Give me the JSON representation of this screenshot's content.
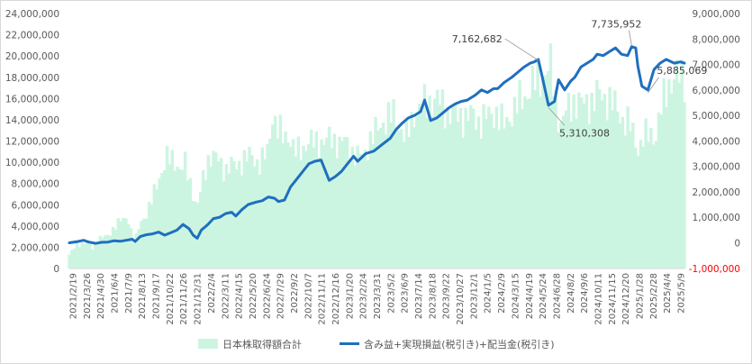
{
  "chart_data": {
    "type": "bar+line",
    "title": "",
    "series": [
      {
        "name": "日本株取得額合計",
        "kind": "bar",
        "axis": "left",
        "color": "#ccf5e1",
        "points": [
          [
            0,
            1300000
          ],
          [
            0.18,
            2200000
          ],
          [
            0.32,
            2400000
          ],
          [
            0.45,
            2500000
          ],
          [
            0.55,
            1800000
          ],
          [
            0.75,
            2900000
          ],
          [
            0.95,
            3000000
          ],
          [
            1.15,
            4200000
          ],
          [
            1.3,
            4500000
          ],
          [
            1.45,
            4800000
          ],
          [
            1.6,
            2300000
          ],
          [
            1.75,
            4300000
          ],
          [
            1.9,
            5200000
          ],
          [
            2.05,
            6500000
          ],
          [
            2.2,
            8500000
          ],
          [
            2.4,
            10300000
          ],
          [
            2.6,
            10200000
          ],
          [
            2.75,
            9200000
          ],
          [
            2.85,
            9800000
          ],
          [
            3.0,
            7800000
          ],
          [
            3.15,
            5600000
          ],
          [
            3.3,
            8500000
          ],
          [
            3.45,
            10700000
          ],
          [
            3.65,
            10300000
          ],
          [
            3.85,
            9300000
          ],
          [
            4.0,
            9700000
          ],
          [
            4.15,
            9800000
          ],
          [
            4.3,
            10200000
          ],
          [
            4.5,
            10700000
          ],
          [
            4.7,
            9700000
          ],
          [
            4.9,
            11200000
          ],
          [
            5.0,
            14800000
          ],
          [
            5.12,
            13000000
          ],
          [
            5.25,
            12500000
          ],
          [
            5.4,
            12700000
          ],
          [
            5.55,
            10800000
          ],
          [
            5.7,
            11300000
          ],
          [
            5.85,
            11700000
          ],
          [
            6.0,
            11900000
          ],
          [
            6.15,
            12000000
          ],
          [
            6.3,
            11800000
          ],
          [
            6.45,
            12400000
          ],
          [
            6.65,
            11700000
          ],
          [
            6.8,
            12000000
          ],
          [
            6.95,
            11100000
          ],
          [
            7.1,
            10500000
          ],
          [
            7.25,
            10700000
          ],
          [
            7.4,
            12000000
          ],
          [
            7.55,
            12800000
          ],
          [
            7.7,
            13800000
          ],
          [
            7.85,
            14100000
          ],
          [
            8.0,
            14500000
          ],
          [
            8.15,
            13300000
          ],
          [
            8.3,
            12200000
          ],
          [
            8.5,
            14700000
          ],
          [
            8.7,
            15200000
          ],
          [
            8.85,
            15700000
          ],
          [
            9.0,
            15900000
          ],
          [
            9.15,
            15600000
          ],
          [
            9.35,
            14600000
          ],
          [
            9.55,
            14400000
          ],
          [
            9.75,
            14300000
          ],
          [
            9.95,
            14400000
          ],
          [
            10.1,
            13800000
          ],
          [
            10.3,
            14300000
          ],
          [
            10.5,
            14800000
          ],
          [
            10.7,
            13400000
          ],
          [
            10.9,
            14700000
          ],
          [
            11.1,
            15700000
          ],
          [
            11.3,
            16700000
          ],
          [
            11.5,
            17600000
          ],
          [
            11.7,
            18400000
          ],
          [
            11.85,
            19000000
          ],
          [
            11.95,
            16500000
          ],
          [
            12.1,
            13500000
          ],
          [
            12.25,
            14800000
          ],
          [
            12.45,
            15900000
          ],
          [
            12.65,
            15400000
          ],
          [
            12.85,
            15700000
          ],
          [
            13.05,
            16400000
          ],
          [
            13.25,
            16000000
          ],
          [
            13.45,
            15200000
          ],
          [
            13.65,
            14000000
          ],
          [
            13.85,
            13200000
          ],
          [
            14.0,
            11300000
          ],
          [
            14.15,
            12200000
          ],
          [
            14.3,
            12800000
          ],
          [
            14.45,
            12500000
          ],
          [
            14.6,
            15300000
          ],
          [
            14.75,
            17500000
          ],
          [
            14.9,
            17800000
          ],
          [
            15.05,
            18200000
          ],
          [
            15.15,
            18000000
          ]
        ]
      },
      {
        "name": "含み益+実現損益(税引き)+配当金(税引き)",
        "kind": "line",
        "axis": "right",
        "color": "#1f6fbf",
        "points": [
          [
            0,
            0
          ],
          [
            0.2,
            50000
          ],
          [
            0.35,
            100000
          ],
          [
            0.5,
            20000
          ],
          [
            0.65,
            -20000
          ],
          [
            0.8,
            20000
          ],
          [
            0.95,
            30000
          ],
          [
            1.1,
            80000
          ],
          [
            1.25,
            60000
          ],
          [
            1.4,
            100000
          ],
          [
            1.55,
            140000
          ],
          [
            1.62,
            50000
          ],
          [
            1.75,
            250000
          ],
          [
            1.9,
            320000
          ],
          [
            2.05,
            350000
          ],
          [
            2.2,
            420000
          ],
          [
            2.35,
            300000
          ],
          [
            2.5,
            400000
          ],
          [
            2.65,
            500000
          ],
          [
            2.8,
            720000
          ],
          [
            2.95,
            550000
          ],
          [
            3.05,
            300000
          ],
          [
            3.15,
            180000
          ],
          [
            3.25,
            500000
          ],
          [
            3.4,
            700000
          ],
          [
            3.55,
            950000
          ],
          [
            3.7,
            1000000
          ],
          [
            3.85,
            1150000
          ],
          [
            4.0,
            1200000
          ],
          [
            4.1,
            1050000
          ],
          [
            4.25,
            1300000
          ],
          [
            4.4,
            1500000
          ],
          [
            4.6,
            1600000
          ],
          [
            4.75,
            1650000
          ],
          [
            4.9,
            1800000
          ],
          [
            5.05,
            1750000
          ],
          [
            5.15,
            1620000
          ],
          [
            5.3,
            1680000
          ],
          [
            5.45,
            2200000
          ],
          [
            5.6,
            2500000
          ],
          [
            5.75,
            2800000
          ],
          [
            5.9,
            3100000
          ],
          [
            6.05,
            3200000
          ],
          [
            6.2,
            3250000
          ],
          [
            6.4,
            2450000
          ],
          [
            6.55,
            2600000
          ],
          [
            6.7,
            2800000
          ],
          [
            6.85,
            3100000
          ],
          [
            7.0,
            3400000
          ],
          [
            7.1,
            3200000
          ],
          [
            7.3,
            3500000
          ],
          [
            7.5,
            3600000
          ],
          [
            7.7,
            3850000
          ],
          [
            7.9,
            4100000
          ],
          [
            8.05,
            4450000
          ],
          [
            8.2,
            4700000
          ],
          [
            8.35,
            4900000
          ],
          [
            8.5,
            5000000
          ],
          [
            8.65,
            5150000
          ],
          [
            8.75,
            5600000
          ],
          [
            8.9,
            4800000
          ],
          [
            9.05,
            4900000
          ],
          [
            9.2,
            5100000
          ],
          [
            9.35,
            5300000
          ],
          [
            9.5,
            5450000
          ],
          [
            9.65,
            5550000
          ],
          [
            9.8,
            5600000
          ],
          [
            10.0,
            5800000
          ],
          [
            10.15,
            6000000
          ],
          [
            10.3,
            5900000
          ],
          [
            10.45,
            6050000
          ],
          [
            10.55,
            6050000
          ],
          [
            10.7,
            6280000
          ],
          [
            10.9,
            6500000
          ],
          [
            11.05,
            6700000
          ],
          [
            11.2,
            6900000
          ],
          [
            11.35,
            7050000
          ],
          [
            11.45,
            7100000
          ],
          [
            11.55,
            7200000
          ],
          [
            11.65,
            6500000
          ],
          [
            11.8,
            5400000
          ],
          [
            11.95,
            5550000
          ],
          [
            12.05,
            6400000
          ],
          [
            12.2,
            6000000
          ],
          [
            12.35,
            6350000
          ],
          [
            12.45,
            6500000
          ],
          [
            12.6,
            6900000
          ],
          [
            12.75,
            7050000
          ],
          [
            12.9,
            7200000
          ],
          [
            13.0,
            7400000
          ],
          [
            13.15,
            7350000
          ],
          [
            13.3,
            7500000
          ],
          [
            13.45,
            7650000
          ],
          [
            13.6,
            7400000
          ],
          [
            13.75,
            7350000
          ],
          [
            13.85,
            7700000
          ],
          [
            13.95,
            7650000
          ],
          [
            14.0,
            6950000
          ],
          [
            14.1,
            6150000
          ],
          [
            14.25,
            6000000
          ],
          [
            14.4,
            6800000
          ],
          [
            14.55,
            7050000
          ],
          [
            14.7,
            7200000
          ],
          [
            14.9,
            7050000
          ],
          [
            15.05,
            7100000
          ],
          [
            15.15,
            7050000
          ]
        ]
      }
    ],
    "x_tick_labels": [
      "2021/2/19",
      "2021/3/26",
      "2021/4/30",
      "2021/6/4",
      "2021/7/9",
      "2021/8/13",
      "2021/9/17",
      "2021/10/22",
      "2021/11/26",
      "2021/12/31",
      "2022/2/4",
      "2022/3/11",
      "2022/4/15",
      "2022/5/20",
      "2022/6/24",
      "2022/7/29",
      "2022/9/2",
      "2022/10/7",
      "2022/11/11",
      "2022/12/16",
      "2023/1/20",
      "2023/2/24",
      "2023/3/31",
      "2023/5/2",
      "2023/6/9",
      "2023/7/14",
      "2023/8/18",
      "2023/9/22",
      "2023/10/27",
      "2023/12/1",
      "2024/1/5",
      "2024/2/9",
      "2024/3/15",
      "2024/4/19",
      "2024/5/24",
      "2024/6/28",
      "2024/8/2",
      "2024/9/6",
      "2024/10/11",
      "2024/11/15",
      "2024/12/20",
      "2025/1/28",
      "2025/2/28",
      "2025/4/4",
      "2025/5/9"
    ],
    "y_left": {
      "min": 0,
      "max": 24000000,
      "ticks": [
        "0",
        "2,000,000",
        "4,000,000",
        "6,000,000",
        "8,000,000",
        "10,000,000",
        "12,000,000",
        "14,000,000",
        "16,000,000",
        "18,000,000",
        "20,000,000",
        "22,000,000",
        "24,000,000"
      ]
    },
    "y_right": {
      "min": -1000000,
      "max": 9000000,
      "ticks": [
        "-1,000,000",
        "0",
        "1,000,000",
        "2,000,000",
        "3,000,000",
        "4,000,000",
        "5,000,000",
        "6,000,000",
        "7,000,000",
        "8,000,000",
        "9,000,000"
      ]
    },
    "annotations": [
      {
        "text": "7,162,682",
        "x": 11.55,
        "y": 7162682,
        "label_side": "left"
      },
      {
        "text": "5,310,308",
        "x": 11.8,
        "y": 5310308,
        "label_side": "below-right"
      },
      {
        "text": "7,735,952",
        "x": 13.85,
        "y": 7735952,
        "label_side": "above-left"
      },
      {
        "text": "5,885,069",
        "x": 14.25,
        "y": 5885069,
        "label_side": "below"
      }
    ],
    "grid": false,
    "legend": "bottom",
    "negative_tick_color": "#ff0000"
  }
}
